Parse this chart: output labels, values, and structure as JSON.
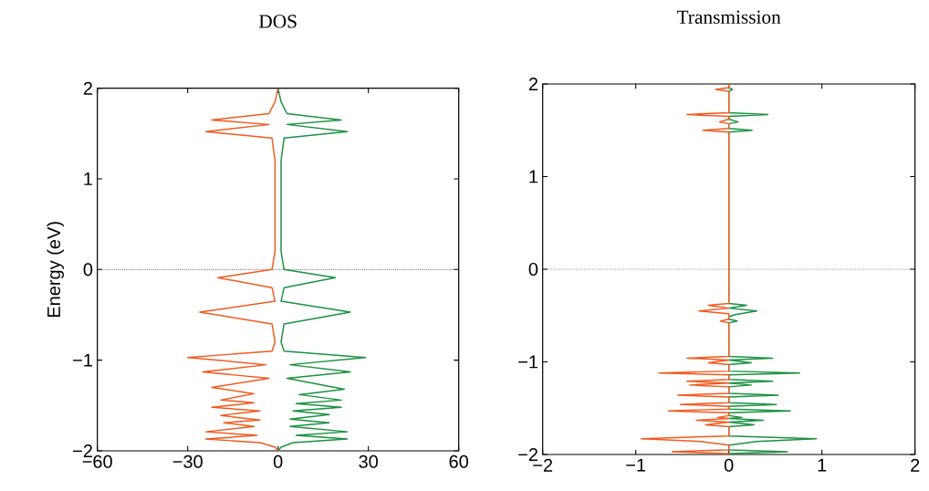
{
  "chart_data": [
    {
      "type": "line",
      "title": "DOS",
      "ylabel": "Energy (eV)",
      "marker": "none",
      "line_style": "solid",
      "xlim": [
        -60,
        60
      ],
      "xticks": [
        {
          "value": -60,
          "label": "−60"
        },
        {
          "value": -30,
          "label": "−30"
        },
        {
          "value": 0,
          "label": "0"
        },
        {
          "value": 30,
          "label": "30"
        },
        {
          "value": 60,
          "label": "60"
        }
      ],
      "ylim": [
        -2,
        2
      ],
      "yticks": [
        {
          "value": -2,
          "label": "−2"
        },
        {
          "value": -1,
          "label": "−1"
        },
        {
          "value": 0,
          "label": "0"
        },
        {
          "value": 1,
          "label": "1"
        },
        {
          "value": 2,
          "label": "2"
        }
      ],
      "ref_lines": [
        {
          "axis": "y",
          "value": 0,
          "color": "#333333",
          "line_style": "dotted"
        }
      ],
      "series": [
        {
          "color": "#1a9141",
          "x": [
            0,
            1,
            3,
            21,
            3,
            23,
            2,
            1,
            1,
            2,
            19,
            2,
            1,
            24,
            2,
            1,
            2,
            29,
            4,
            24,
            3,
            22,
            7,
            21,
            6,
            21,
            5,
            17,
            4,
            17,
            4,
            23,
            6,
            23,
            5,
            1,
            0
          ],
          "values": [
            2,
            1.85,
            1.72,
            1.65,
            1.6,
            1.52,
            1.45,
            1.2,
            0.2,
            0,
            -0.09,
            -0.2,
            -0.35,
            -0.47,
            -0.6,
            -0.8,
            -0.9,
            -0.97,
            -1.05,
            -1.13,
            -1.2,
            -1.32,
            -1.38,
            -1.44,
            -1.48,
            -1.52,
            -1.56,
            -1.6,
            -1.65,
            -1.69,
            -1.73,
            -1.79,
            -1.83,
            -1.87,
            -1.91,
            -1.96,
            -2
          ]
        },
        {
          "color": "#f05a1e",
          "x": [
            0,
            -1,
            -3,
            -22,
            -3,
            -24,
            -2,
            -1,
            -1,
            -2,
            -20,
            -2,
            -1,
            -26,
            -2,
            -1,
            -2,
            -30,
            -4,
            -25,
            -3,
            -22,
            -8,
            -19,
            -8,
            -22,
            -6,
            -19,
            -6,
            -18,
            -8,
            -24,
            -7,
            -24,
            -6,
            -1,
            0
          ],
          "values": [
            2,
            1.85,
            1.72,
            1.65,
            1.6,
            1.52,
            1.45,
            1.2,
            0.2,
            0,
            -0.09,
            -0.2,
            -0.35,
            -0.47,
            -0.6,
            -0.8,
            -0.9,
            -0.97,
            -1.05,
            -1.13,
            -1.2,
            -1.3,
            -1.37,
            -1.44,
            -1.47,
            -1.52,
            -1.56,
            -1.61,
            -1.66,
            -1.69,
            -1.73,
            -1.79,
            -1.83,
            -1.87,
            -1.91,
            -1.96,
            -2
          ]
        }
      ]
    },
    {
      "type": "line",
      "title": "Transmission",
      "marker": "none",
      "line_style": "solid",
      "xlim": [
        -2,
        2
      ],
      "xticks": [
        {
          "value": -2,
          "label": "−2"
        },
        {
          "value": -1,
          "label": "−1"
        },
        {
          "value": 0,
          "label": "0"
        },
        {
          "value": 1,
          "label": "1"
        },
        {
          "value": 2,
          "label": "2"
        }
      ],
      "ylim": [
        -2,
        2
      ],
      "yticks": [
        {
          "value": -2,
          "label": "−2"
        },
        {
          "value": -1,
          "label": "−1"
        },
        {
          "value": 0,
          "label": "0"
        },
        {
          "value": 1,
          "label": "1"
        },
        {
          "value": 2,
          "label": "2"
        }
      ],
      "ref_lines": [
        {
          "axis": "y",
          "value": 0,
          "color": "#333333",
          "line_style": "dotted"
        }
      ],
      "series": [
        {
          "color": "#1a9141",
          "x": [
            0,
            0,
            0.04,
            0,
            0,
            0.42,
            0,
            0,
            0.1,
            0,
            0,
            0.25,
            0,
            0,
            0.19,
            0,
            0.3,
            0.07,
            0,
            0,
            0.09,
            0,
            0,
            0.47,
            0,
            0.24,
            0,
            0,
            0.76,
            0,
            0,
            0.47,
            0,
            0.24,
            0,
            0,
            0.53,
            0,
            0,
            0.51,
            0,
            0,
            0.66,
            0,
            0,
            0.14,
            0,
            0.37,
            0,
            0.27,
            0,
            0,
            0.94,
            0.3,
            0,
            0,
            0.63,
            0,
            0
          ],
          "values": [
            2,
            1.96,
            1.94,
            1.92,
            1.69,
            1.67,
            1.65,
            1.62,
            1.59,
            1.57,
            1.52,
            1.5,
            1.48,
            -0.37,
            -0.39,
            -0.42,
            -0.45,
            -0.49,
            -0.51,
            -0.54,
            -0.56,
            -0.58,
            -0.94,
            -0.96,
            -0.98,
            -1.01,
            -1.03,
            -1.1,
            -1.12,
            -1.14,
            -1.19,
            -1.21,
            -1.23,
            -1.25,
            -1.27,
            -1.34,
            -1.36,
            -1.38,
            -1.44,
            -1.46,
            -1.48,
            -1.51,
            -1.53,
            -1.55,
            -1.58,
            -1.6,
            -1.61,
            -1.63,
            -1.65,
            -1.68,
            -1.7,
            -1.8,
            -1.83,
            -1.86,
            -1.9,
            -1.95,
            -1.97,
            -1.99,
            -2
          ]
        },
        {
          "color": "#f05a1e",
          "x": [
            0,
            0,
            -0.14,
            0,
            0,
            -0.45,
            0,
            0,
            -0.1,
            0,
            0,
            -0.28,
            0,
            0,
            -0.22,
            0,
            -0.32,
            0,
            0,
            -0.09,
            0,
            0,
            -0.45,
            0,
            -0.22,
            0,
            0,
            -0.75,
            0,
            0,
            -0.45,
            0,
            -0.42,
            0,
            0,
            -0.55,
            0,
            0,
            -0.52,
            0,
            0,
            -0.65,
            0,
            0,
            -0.12,
            0,
            -0.35,
            0,
            -0.25,
            0,
            0,
            -0.94,
            -0.3,
            0,
            0,
            -0.61,
            0,
            0
          ],
          "values": [
            2,
            1.96,
            1.94,
            1.92,
            1.69,
            1.67,
            1.65,
            1.62,
            1.59,
            1.57,
            1.52,
            1.5,
            1.48,
            -0.37,
            -0.39,
            -0.42,
            -0.45,
            -0.48,
            -0.54,
            -0.56,
            -0.58,
            -0.94,
            -0.96,
            -0.98,
            -1.01,
            -1.03,
            -1.1,
            -1.12,
            -1.14,
            -1.19,
            -1.21,
            -1.23,
            -1.25,
            -1.27,
            -1.34,
            -1.36,
            -1.38,
            -1.44,
            -1.46,
            -1.48,
            -1.51,
            -1.53,
            -1.55,
            -1.58,
            -1.6,
            -1.61,
            -1.63,
            -1.65,
            -1.68,
            -1.7,
            -1.8,
            -1.83,
            -1.86,
            -1.9,
            -1.95,
            -1.97,
            -1.99,
            -2
          ]
        }
      ]
    }
  ]
}
